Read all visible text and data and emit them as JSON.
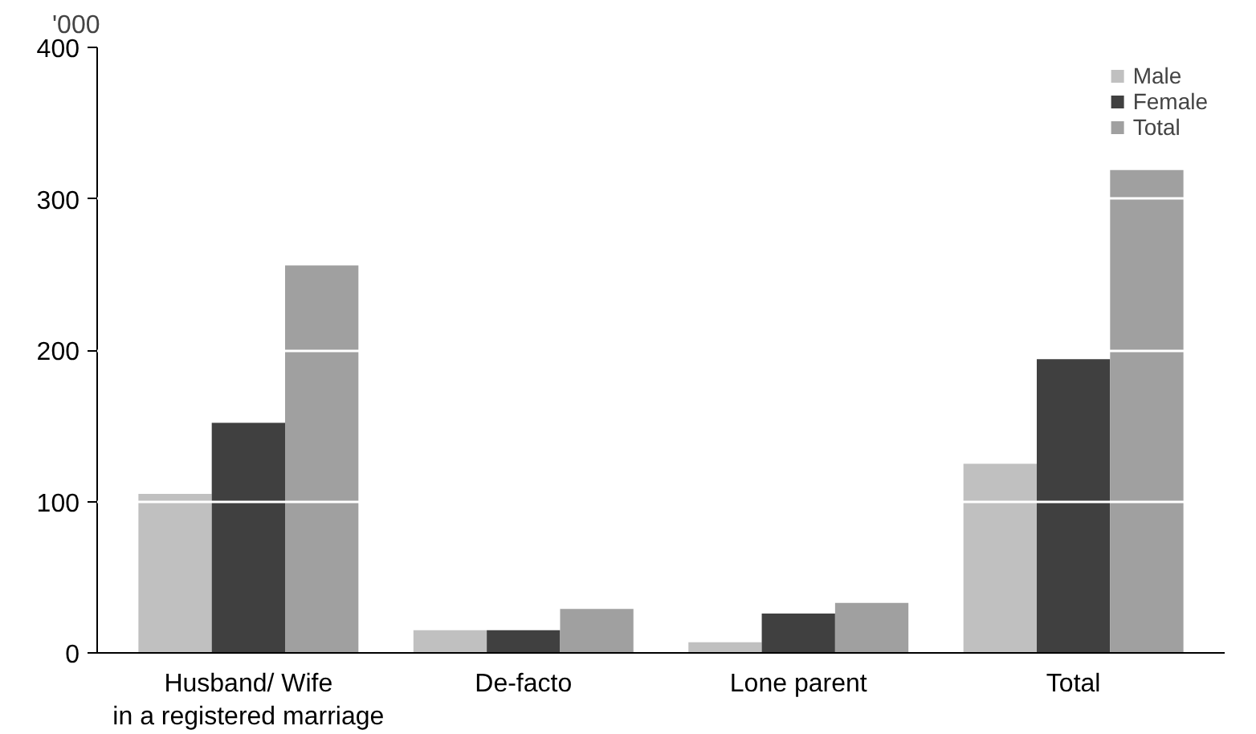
{
  "chart_data": {
    "type": "bar",
    "ylabel": "'000",
    "categories": [
      "Husband/ Wife\nin a registered marriage",
      "De-facto",
      "Lone parent",
      "Total"
    ],
    "series": [
      {
        "name": "Male",
        "color": "#c0c0c0",
        "values": [
          105,
          15,
          7,
          125
        ]
      },
      {
        "name": "Female",
        "color": "#404040",
        "values": [
          152,
          15,
          26,
          194
        ]
      },
      {
        "name": "Total",
        "color": "#a0a0a0",
        "values": [
          256,
          29,
          33,
          319
        ]
      }
    ],
    "ylim": [
      0,
      400
    ],
    "yticks": [
      0,
      100,
      200,
      300,
      400
    ],
    "grid": "y",
    "legend": "top right"
  }
}
